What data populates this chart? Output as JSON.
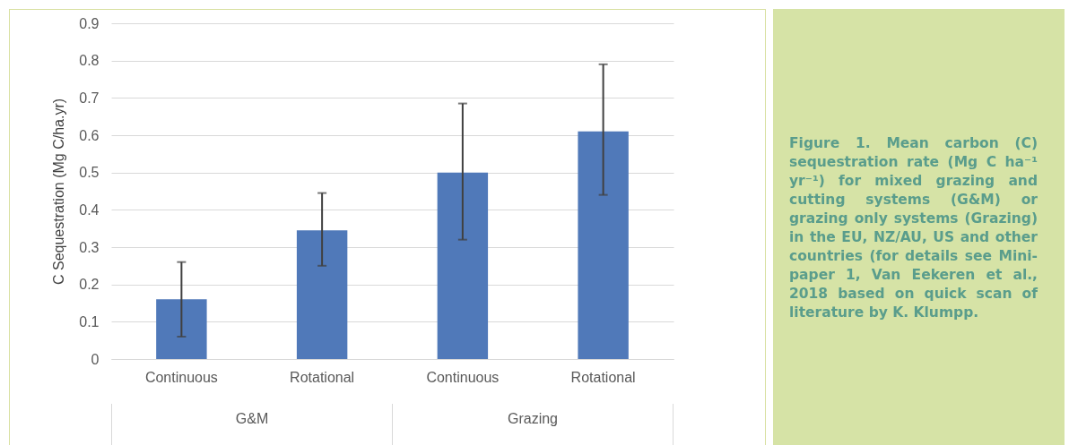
{
  "chart_data": {
    "type": "bar",
    "ylabel": "C Sequestration (Mg C/ha.yr)",
    "categories": [
      "Continuous",
      "Rotational",
      "Continuous",
      "Rotational"
    ],
    "values": [
      0.16,
      0.345,
      0.5,
      0.61
    ],
    "errors": [
      [
        0.06,
        0.26
      ],
      [
        0.25,
        0.445
      ],
      [
        0.32,
        0.685
      ],
      [
        0.44,
        0.79
      ]
    ],
    "color": "#5079b9",
    "ylim": [
      0,
      0.9
    ],
    "yticks": [
      0,
      0.1,
      0.2,
      0.3,
      0.4,
      0.5,
      0.6,
      0.7,
      0.8,
      0.9
    ],
    "grid": "y",
    "annotations": [
      "G&M",
      "Grazing",
      "Figure 1. Mean carbon (C) sequestration rate (Mg C ha⁻¹ yr⁻¹) for mixed grazing and cutting systems (G&M) or grazing only systems (Grazing) in the EU, NZ/AU, US and other countries (for details see Mini-paper 1, Van Eekeren et al., 2018 based on quick scan of literature by K. Klumpp."
    ]
  }
}
